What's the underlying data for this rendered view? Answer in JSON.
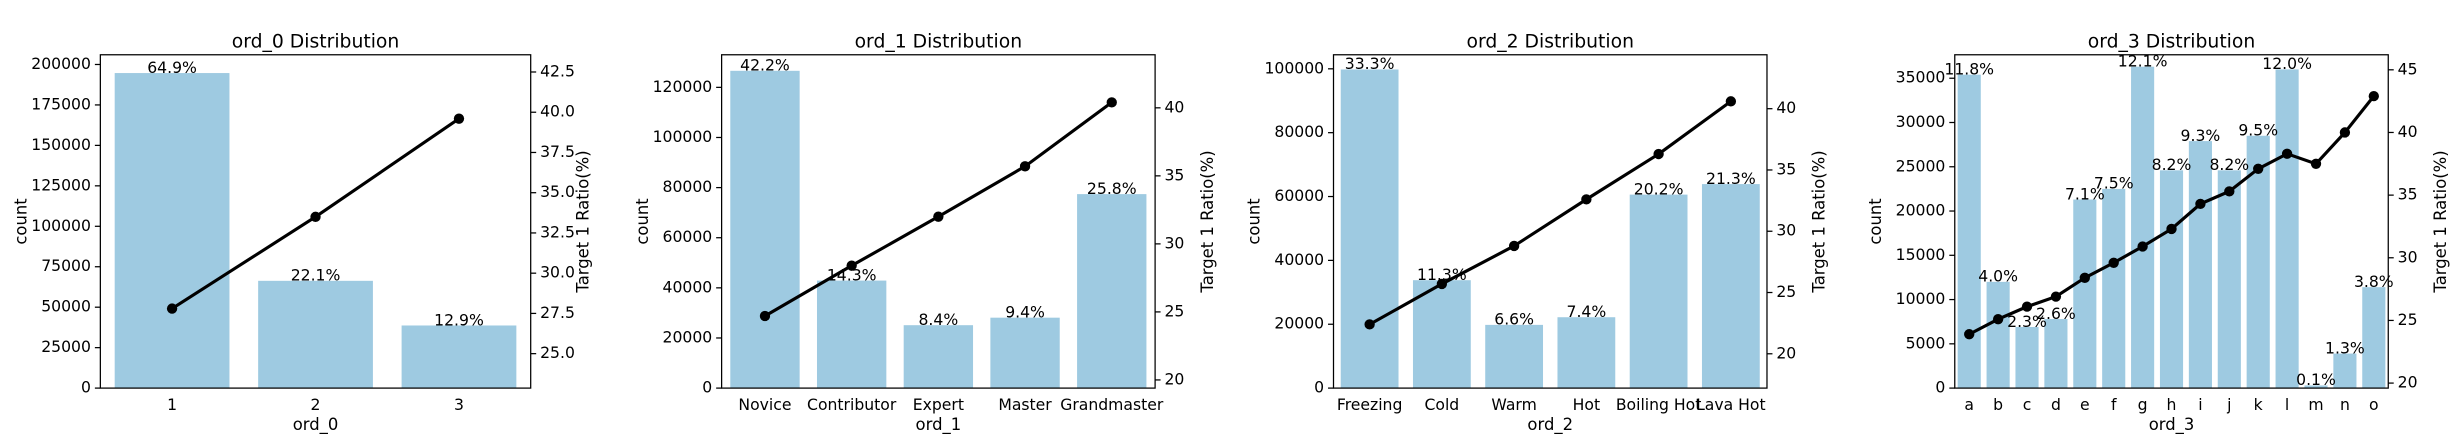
{
  "chart_data": [
    {
      "type": "bar",
      "title": "ord_0 Distribution",
      "x_label": "ord_0",
      "y_label": "count",
      "y2_label": "Target 1 Ratio(%)",
      "categories": [
        "1",
        "2",
        "3"
      ],
      "series": [
        {
          "type": "bar",
          "color": "#9ecae1",
          "values": [
            194700,
            66300,
            38700
          ],
          "percent_labels": [
            "64.9%",
            "22.1%",
            "12.9%"
          ]
        },
        {
          "type": "line",
          "axis": "y2",
          "color": "#000000",
          "values": [
            27.8,
            33.5,
            39.6
          ]
        }
      ],
      "ylim": [
        0,
        206000
      ],
      "yticks": [
        0,
        25000,
        50000,
        75000,
        100000,
        125000,
        150000,
        175000,
        200000
      ],
      "y2lim": [
        22.86,
        43.57
      ],
      "y2ticks": [
        {
          "value": 25,
          "label": "25.0"
        },
        {
          "value": 27.5,
          "label": "27.5"
        },
        {
          "value": 30,
          "label": "30.0"
        },
        {
          "value": 32.5,
          "label": "32.5"
        },
        {
          "value": 35,
          "label": "35.0"
        },
        {
          "value": 37.5,
          "label": "37.5"
        },
        {
          "value": 40,
          "label": "40.0"
        },
        {
          "value": 42.5,
          "label": "42.5"
        }
      ]
    },
    {
      "type": "bar",
      "title": "ord_1 Distribution",
      "x_label": "ord_1",
      "y_label": "count",
      "y2_label": "Target 1 Ratio(%)",
      "categories": [
        "Novice",
        "Contributor",
        "Expert",
        "Master",
        "Grandmaster"
      ],
      "series": [
        {
          "type": "bar",
          "color": "#9ecae1",
          "values": [
            126600,
            42900,
            25100,
            28100,
            77400
          ],
          "percent_labels": [
            "42.2%",
            "14.3%",
            "8.4%",
            "9.4%",
            "25.8%"
          ]
        },
        {
          "type": "line",
          "axis": "y2",
          "color": "#000000",
          "values": [
            24.7,
            28.4,
            32.0,
            35.7,
            40.4
          ]
        }
      ],
      "ylim": [
        0,
        133000
      ],
      "yticks": [
        0,
        20000,
        40000,
        60000,
        80000,
        100000,
        120000
      ],
      "y2lim": [
        19.4,
        43.9
      ],
      "y2ticks": [
        20,
        25,
        30,
        35,
        40
      ]
    },
    {
      "type": "bar",
      "title": "ord_2 Distribution",
      "x_label": "ord_2",
      "y_label": "count",
      "y2_label": "Target 1 Ratio(%)",
      "categories": [
        "Freezing",
        "Cold",
        "Warm",
        "Hot",
        "Boiling Hot",
        "Lava Hot"
      ],
      "series": [
        {
          "type": "bar",
          "color": "#9ecae1",
          "values": [
            99800,
            33800,
            19800,
            22200,
            60600,
            63900
          ],
          "percent_labels": [
            "33.3%",
            "11.3%",
            "6.6%",
            "7.4%",
            "20.2%",
            "21.3%"
          ]
        },
        {
          "type": "line",
          "axis": "y2",
          "color": "#000000",
          "values": [
            22.4,
            25.7,
            28.8,
            32.6,
            36.3,
            40.6
          ]
        }
      ],
      "ylim": [
        0,
        104400
      ],
      "yticks": [
        0,
        20000,
        40000,
        60000,
        80000,
        100000
      ],
      "y2lim": [
        17.2,
        44.4
      ],
      "y2ticks": [
        20,
        25,
        30,
        35,
        40
      ]
    },
    {
      "type": "bar",
      "title": "ord_3 Distribution",
      "x_label": "ord_3",
      "y_label": "count",
      "y2_label": "Target 1 Ratio(%)",
      "categories": [
        "a",
        "b",
        "c",
        "d",
        "e",
        "f",
        "g",
        "h",
        "i",
        "j",
        "k",
        "l",
        "m",
        "n",
        "o"
      ],
      "series": [
        {
          "type": "bar",
          "color": "#9ecae1",
          "values": [
            35400,
            12000,
            6900,
            7800,
            21300,
            22500,
            36300,
            24600,
            27900,
            24600,
            28500,
            36000,
            300,
            3900,
            11400
          ],
          "percent_labels": [
            "11.8%",
            "4.0%",
            "2.3%",
            "2.6%",
            "7.1%",
            "7.5%",
            "12.1%",
            "8.2%",
            "9.3%",
            "8.2%",
            "9.5%",
            "12.0%",
            "0.1%",
            "1.3%",
            "3.8%"
          ]
        },
        {
          "type": "line",
          "axis": "y2",
          "color": "#000000",
          "values": [
            23.9,
            25.1,
            26.1,
            26.9,
            28.4,
            29.6,
            30.9,
            32.3,
            34.3,
            35.3,
            37.1,
            38.3,
            37.5,
            40.0,
            42.9
          ]
        }
      ],
      "ylim": [
        0,
        37650
      ],
      "yticks": [
        0,
        5000,
        10000,
        15000,
        20000,
        25000,
        30000,
        35000
      ],
      "y2lim": [
        19.6,
        46.2
      ],
      "y2ticks": [
        20,
        25,
        30,
        35,
        40,
        45
      ]
    }
  ]
}
